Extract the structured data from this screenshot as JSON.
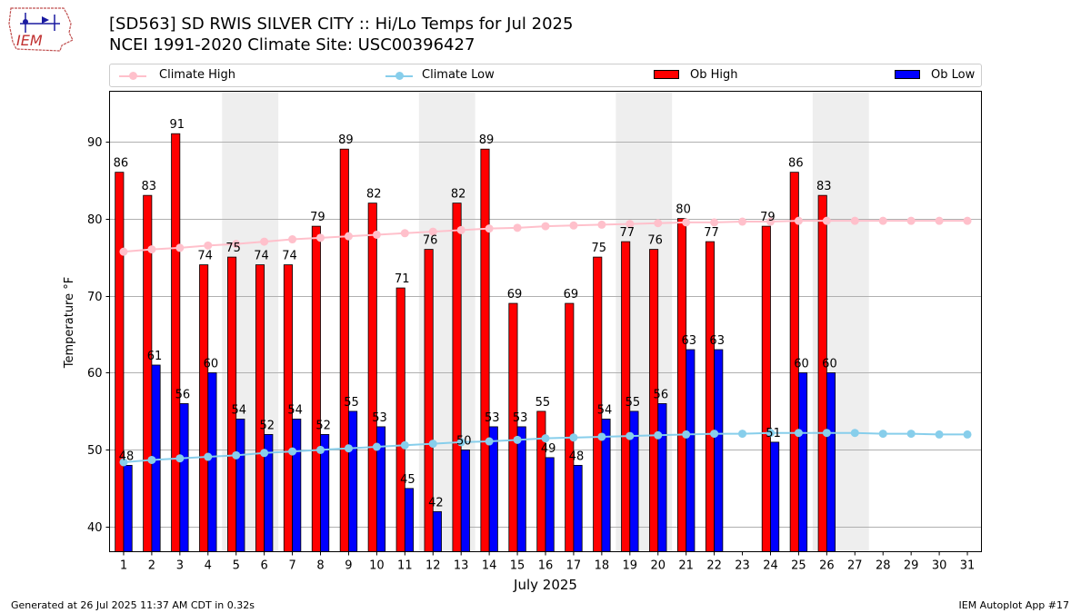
{
  "header": {
    "title_line1": "[SD563] SD RWIS SILVER CITY :: Hi/Lo Temps for Jul 2025",
    "title_line2": "NCEI 1991-2020 Climate Site: USC00396427",
    "logo_text": "IEM"
  },
  "legend": {
    "climate_high": "Climate High",
    "climate_low": "Climate Low",
    "ob_high": "Ob High",
    "ob_low": "Ob Low"
  },
  "footer": {
    "generated": "Generated at 26 Jul 2025 11:37 AM CDT in 0.32s",
    "app": "IEM Autoplot App #17"
  },
  "colors": {
    "ob_high": "#ff0000",
    "ob_low": "#0000ff",
    "climate_high": "#ffc0cb",
    "climate_low": "#87ceeb",
    "weekend_shade": "#eeeeee",
    "grid": "#b0b0b0"
  },
  "chart_data": {
    "type": "bar",
    "xlabel": "July 2025",
    "ylabel": "Temperature °F",
    "ylim": [
      36.8,
      96.5
    ],
    "yticks": [
      40,
      50,
      60,
      70,
      80,
      90
    ],
    "grid": "horizontal",
    "legend_position": "top",
    "categories": [
      "1",
      "2",
      "3",
      "4",
      "5",
      "6",
      "7",
      "8",
      "9",
      "10",
      "11",
      "12",
      "13",
      "14",
      "15",
      "16",
      "17",
      "18",
      "19",
      "20",
      "21",
      "22",
      "23",
      "24",
      "25",
      "26",
      "27",
      "28",
      "29",
      "30",
      "31"
    ],
    "shaded_weekends": [
      [
        5,
        6
      ],
      [
        12,
        13
      ],
      [
        19,
        20
      ],
      [
        26,
        27
      ]
    ],
    "series": [
      {
        "name": "Ob High",
        "kind": "bar",
        "values": [
          86,
          83,
          91,
          74,
          75,
          74,
          74,
          79,
          89,
          82,
          71,
          76,
          82,
          89,
          69,
          55,
          69,
          75,
          77,
          76,
          80,
          77,
          null,
          79,
          86,
          83,
          null,
          null,
          null,
          null,
          null
        ]
      },
      {
        "name": "Ob Low",
        "kind": "bar",
        "values": [
          48,
          61,
          56,
          60,
          54,
          52,
          54,
          52,
          55,
          53,
          45,
          42,
          50,
          53,
          53,
          49,
          48,
          54,
          55,
          56,
          63,
          63,
          null,
          51,
          60,
          60,
          null,
          null,
          null,
          null,
          null
        ]
      },
      {
        "name": "Climate High",
        "kind": "line",
        "values": [
          75.7,
          76.0,
          76.2,
          76.5,
          76.7,
          77.0,
          77.3,
          77.5,
          77.7,
          77.9,
          78.1,
          78.3,
          78.5,
          78.7,
          78.8,
          79.0,
          79.1,
          79.2,
          79.3,
          79.4,
          79.5,
          79.5,
          79.6,
          79.6,
          79.7,
          79.7,
          79.7,
          79.7,
          79.7,
          79.7,
          79.7
        ]
      },
      {
        "name": "Climate Low",
        "kind": "line",
        "values": [
          48.4,
          48.7,
          48.9,
          49.1,
          49.3,
          49.6,
          49.8,
          50.0,
          50.2,
          50.4,
          50.6,
          50.8,
          51.0,
          51.1,
          51.3,
          51.5,
          51.6,
          51.7,
          51.8,
          51.9,
          52.0,
          52.1,
          52.1,
          52.2,
          52.2,
          52.2,
          52.2,
          52.1,
          52.1,
          52.0,
          52.0
        ]
      }
    ]
  }
}
